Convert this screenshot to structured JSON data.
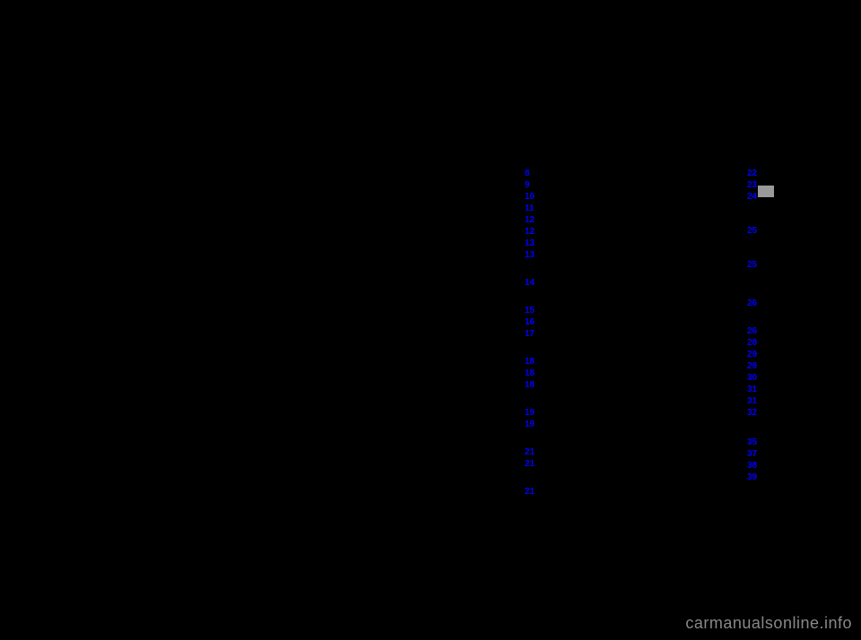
{
  "column1": {
    "items": [
      {
        "label": "8",
        "spacer": 0
      },
      {
        "label": "9",
        "spacer": 0
      },
      {
        "label": "10",
        "spacer": 0
      },
      {
        "label": "11",
        "spacer": 0
      },
      {
        "label": "12",
        "spacer": 0
      },
      {
        "label": "12",
        "spacer": 0
      },
      {
        "label": "13",
        "spacer": 0
      },
      {
        "label": "13",
        "spacer": 18
      },
      {
        "label": "14",
        "spacer": 18
      },
      {
        "label": "15",
        "spacer": 0
      },
      {
        "label": "16",
        "spacer": 0
      },
      {
        "label": "17",
        "spacer": 18
      },
      {
        "label": "18",
        "spacer": 0
      },
      {
        "label": "18",
        "spacer": 0
      },
      {
        "label": "18",
        "spacer": 18
      },
      {
        "label": "19",
        "spacer": 0
      },
      {
        "label": "19",
        "spacer": 18
      },
      {
        "label": "21",
        "spacer": 0
      },
      {
        "label": "21",
        "spacer": 18
      },
      {
        "label": "21",
        "spacer": 0
      }
    ]
  },
  "column2": {
    "items": [
      {
        "label": "22",
        "spacer": 0
      },
      {
        "label": "23",
        "spacer": 0
      },
      {
        "label": "24",
        "spacer": 25
      },
      {
        "label": "25",
        "spacer": 25
      },
      {
        "label": "25",
        "spacer": 30
      },
      {
        "label": "26",
        "spacer": 18
      },
      {
        "label": "26",
        "spacer": 0
      },
      {
        "label": "28",
        "spacer": 0
      },
      {
        "label": "29",
        "spacer": 0
      },
      {
        "label": "29",
        "spacer": 0
      },
      {
        "label": "30",
        "spacer": 0
      },
      {
        "label": "31",
        "spacer": 0
      },
      {
        "label": "31",
        "spacer": 0
      },
      {
        "label": "32",
        "spacer": 20
      },
      {
        "label": "35",
        "spacer": 0
      },
      {
        "label": "37",
        "spacer": 0
      },
      {
        "label": "38",
        "spacer": 0
      },
      {
        "label": "39",
        "spacer": 0
      }
    ]
  },
  "watermark": "carmanualsonline.info",
  "colors": {
    "background": "#000000",
    "link": "#0000ff",
    "grayBox": "#9a9a9a",
    "watermark": "#888888"
  }
}
